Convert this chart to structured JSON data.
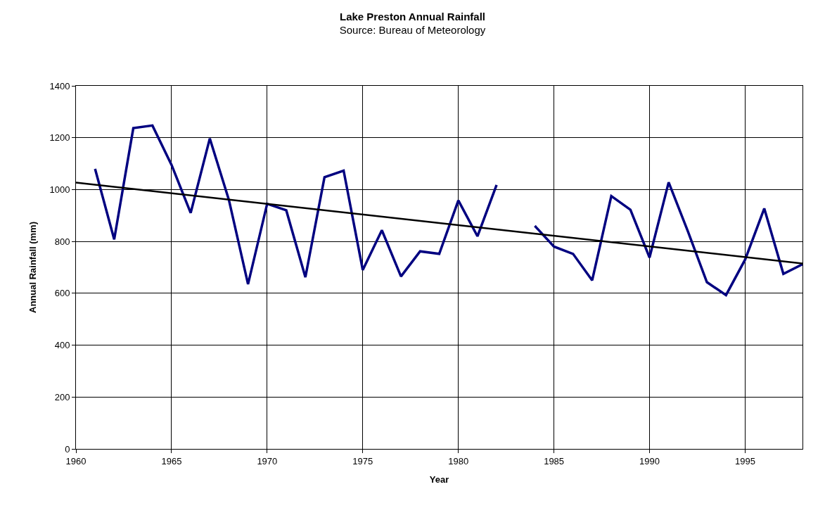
{
  "chart_data": {
    "type": "line",
    "title": "Lake Preston Annual Rainfall",
    "subtitle": "Source: Bureau of Meteorology",
    "xlabel": "Year",
    "ylabel": "Annual Rainfall (mm)",
    "x": [
      1961,
      1962,
      1963,
      1964,
      1965,
      1966,
      1967,
      1968,
      1969,
      1970,
      1971,
      1972,
      1973,
      1974,
      1975,
      1976,
      1977,
      1978,
      1979,
      1980,
      1981,
      1982,
      1983,
      1984,
      1985,
      1986,
      1987,
      1988,
      1989,
      1990,
      1991,
      1992,
      1993,
      1994,
      1995,
      1996,
      1997,
      1998
    ],
    "series": [
      {
        "color": "#000080",
        "values": [
          1080,
          808,
          1237,
          1247,
          1095,
          910,
          1197,
          960,
          635,
          945,
          920,
          662,
          1048,
          1073,
          690,
          843,
          665,
          762,
          752,
          958,
          820,
          1018,
          null,
          860,
          780,
          752,
          650,
          975,
          922,
          738,
          1028,
          840,
          643,
          593,
          730,
          927,
          675,
          712
        ]
      },
      {
        "type": "line",
        "color": "#000000",
        "x": [
          1960,
          1998
        ],
        "values": [
          1027,
          715
        ]
      }
    ],
    "xlim": [
      1960,
      1998
    ],
    "xticks": [
      1960,
      1965,
      1970,
      1975,
      1980,
      1985,
      1990,
      1995
    ],
    "ylim": [
      0,
      1400
    ],
    "yticks": [
      0,
      200,
      400,
      600,
      800,
      1000,
      1200,
      1400
    ],
    "grid": true,
    "marker": "none",
    "line_style": "solid"
  }
}
